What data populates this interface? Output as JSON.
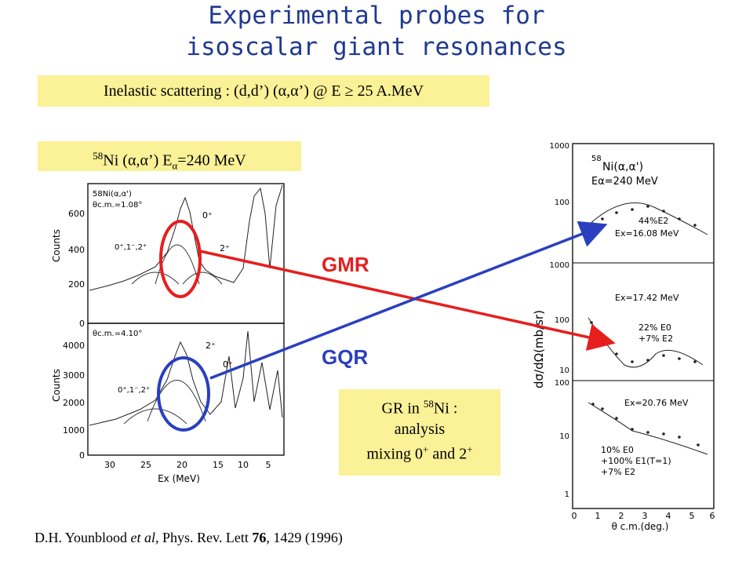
{
  "title": {
    "line1": "Experimental probes for",
    "line2": "isoscalar giant resonances"
  },
  "box_inelastic": {
    "prefix": "Inelastic scattering  : (d,d’) (",
    "alpha1": "α",
    "sep": ",",
    "alpha2": "α",
    "suffix": "’) @ E ≥ 25 A.MeV"
  },
  "box_reaction": {
    "mass": "58",
    "element": "Ni (",
    "a1": "α",
    "comma": ",",
    "a2": "α",
    "close": "’)    E",
    "sub": "α",
    "energy": "=240 MeV"
  },
  "box_analysis": {
    "line1_pre": "GR in ",
    "line1_sup": "58",
    "line1_post": "Ni :",
    "line2": "analysis",
    "line3_pre": "mixing 0",
    "line3_sup1": "+",
    "line3_mid": " and 2",
    "line3_sup2": "+"
  },
  "labels": {
    "gmr": "GMR",
    "gqr": "GQR"
  },
  "reference": {
    "authors": "D.H. Younblood ",
    "etal": "et al",
    "journal": ", Phys. Rev. Lett ",
    "volume": "76",
    "pages": ", 1429 (1996)"
  },
  "colors": {
    "title": "#1f3a8f",
    "box": "#fbf197",
    "gmr": "#e61e1e",
    "gqr": "#2a3fbf"
  },
  "left_plot": {
    "top_panel": {
      "ylabel": "Counts",
      "yticks": [
        "0",
        "200",
        "400",
        "600"
      ],
      "reaction": "58Ni(α,α')",
      "angle": "θc.m.=1.08°",
      "tags": [
        "0⁺",
        "2⁺",
        "0⁺,1⁻,2⁺"
      ]
    },
    "bottom_panel": {
      "ylabel": "Counts",
      "yticks": [
        "0",
        "1000",
        "2000",
        "3000",
        "4000"
      ],
      "angle": "θc.m.=4.10°",
      "tags": [
        "2⁺",
        "0⁺",
        "0⁺,1⁻,2⁺"
      ]
    },
    "xlabel": "Ex (MeV)",
    "xticks": [
      "30",
      "25",
      "20",
      "15",
      "10",
      "5"
    ]
  },
  "right_plot": {
    "ylabel": "dσ/dΩ(mb/sr)",
    "xlabel": "θ c.m.(deg.)",
    "xticks": [
      "0",
      "1",
      "2",
      "3",
      "4",
      "5",
      "6"
    ],
    "header": [
      "58",
      "Ni(α,α')",
      "Eα=240 MeV"
    ],
    "panels": [
      {
        "yticks": [
          "1000",
          "100"
        ],
        "ex": "Ex=16.08 MeV",
        "comp": [
          "44%E2"
        ]
      },
      {
        "yticks": [
          "1000",
          "100",
          "10"
        ],
        "ex": "Ex=17.42 MeV",
        "comp": [
          "22% E0",
          "+7% E2"
        ]
      },
      {
        "yticks": [
          "100",
          "10",
          "1"
        ],
        "ex": "Ex=20.76 MeV",
        "comp": [
          "10% E0",
          "+100% E1(T=1)",
          "+7% E2"
        ]
      }
    ]
  }
}
